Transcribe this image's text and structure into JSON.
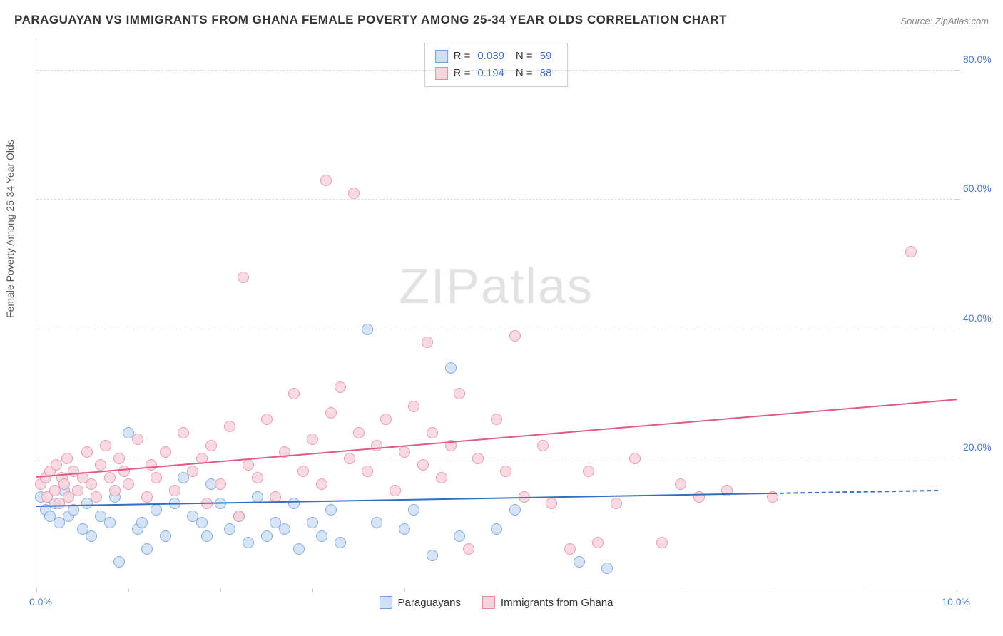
{
  "title": "PARAGUAYAN VS IMMIGRANTS FROM GHANA FEMALE POVERTY AMONG 25-34 YEAR OLDS CORRELATION CHART",
  "source": "Source: ZipAtlas.com",
  "watermark": {
    "part1": "ZIP",
    "part2": "atlas"
  },
  "ylabel": "Female Poverty Among 25-34 Year Olds",
  "chart": {
    "type": "scatter",
    "xlim": [
      0,
      10
    ],
    "ylim": [
      0,
      85
    ],
    "x_ticks": [
      0,
      1,
      2,
      3,
      4,
      5,
      6,
      7,
      8,
      9,
      10
    ],
    "y_ticks": [
      20,
      40,
      60,
      80
    ],
    "y_tick_labels": [
      "20.0%",
      "40.0%",
      "60.0%",
      "80.0%"
    ],
    "x_origin_label": "0.0%",
    "x_max_label": "10.0%",
    "grid_color": "#dddddd",
    "background_color": "#ffffff",
    "marker_radius": 8,
    "series": [
      {
        "name": "Paraguayans",
        "R": "0.039",
        "N": "59",
        "fill": "#cfe0f5",
        "stroke": "#6fa0df",
        "trend_color": "#2f6fc4",
        "trend": {
          "x1": 0,
          "y1": 12.5,
          "x2": 8.0,
          "y2": 14.5,
          "dash_to_x": 9.8
        },
        "points": [
          [
            0.05,
            14
          ],
          [
            0.1,
            12
          ],
          [
            0.15,
            11
          ],
          [
            0.2,
            13
          ],
          [
            0.25,
            10
          ],
          [
            0.3,
            15
          ],
          [
            0.35,
            11
          ],
          [
            0.4,
            12
          ],
          [
            0.5,
            9
          ],
          [
            0.55,
            13
          ],
          [
            0.6,
            8
          ],
          [
            0.7,
            11
          ],
          [
            0.8,
            10
          ],
          [
            0.85,
            14
          ],
          [
            0.9,
            4
          ],
          [
            1.0,
            24
          ],
          [
            1.1,
            9
          ],
          [
            1.15,
            10
          ],
          [
            1.2,
            6
          ],
          [
            1.3,
            12
          ],
          [
            1.4,
            8
          ],
          [
            1.5,
            13
          ],
          [
            1.6,
            17
          ],
          [
            1.7,
            11
          ],
          [
            1.8,
            10
          ],
          [
            1.85,
            8
          ],
          [
            1.9,
            16
          ],
          [
            2.0,
            13
          ],
          [
            2.1,
            9
          ],
          [
            2.2,
            11
          ],
          [
            2.3,
            7
          ],
          [
            2.4,
            14
          ],
          [
            2.5,
            8
          ],
          [
            2.6,
            10
          ],
          [
            2.7,
            9
          ],
          [
            2.8,
            13
          ],
          [
            2.85,
            6
          ],
          [
            3.0,
            10
          ],
          [
            3.1,
            8
          ],
          [
            3.2,
            12
          ],
          [
            3.3,
            7
          ],
          [
            3.6,
            40
          ],
          [
            3.7,
            10
          ],
          [
            4.0,
            9
          ],
          [
            4.1,
            12
          ],
          [
            4.3,
            5
          ],
          [
            4.5,
            34
          ],
          [
            4.6,
            8
          ],
          [
            5.0,
            9
          ],
          [
            5.2,
            12
          ],
          [
            5.9,
            4
          ],
          [
            6.2,
            3
          ]
        ]
      },
      {
        "name": "Immigrants from Ghana",
        "R": "0.194",
        "N": "88",
        "fill": "#f8d4dc",
        "stroke": "#e88ba3",
        "trend_color": "#e05a85",
        "trend": {
          "x1": 0,
          "y1": 17,
          "x2": 10,
          "y2": 29
        },
        "points": [
          [
            0.05,
            16
          ],
          [
            0.1,
            17
          ],
          [
            0.12,
            14
          ],
          [
            0.15,
            18
          ],
          [
            0.2,
            15
          ],
          [
            0.22,
            19
          ],
          [
            0.25,
            13
          ],
          [
            0.28,
            17
          ],
          [
            0.3,
            16
          ],
          [
            0.33,
            20
          ],
          [
            0.35,
            14
          ],
          [
            0.4,
            18
          ],
          [
            0.45,
            15
          ],
          [
            0.5,
            17
          ],
          [
            0.55,
            21
          ],
          [
            0.6,
            16
          ],
          [
            0.65,
            14
          ],
          [
            0.7,
            19
          ],
          [
            0.75,
            22
          ],
          [
            0.8,
            17
          ],
          [
            0.85,
            15
          ],
          [
            0.9,
            20
          ],
          [
            0.95,
            18
          ],
          [
            1.0,
            16
          ],
          [
            1.1,
            23
          ],
          [
            1.2,
            14
          ],
          [
            1.25,
            19
          ],
          [
            1.3,
            17
          ],
          [
            1.4,
            21
          ],
          [
            1.5,
            15
          ],
          [
            1.6,
            24
          ],
          [
            1.7,
            18
          ],
          [
            1.8,
            20
          ],
          [
            1.85,
            13
          ],
          [
            1.9,
            22
          ],
          [
            2.0,
            16
          ],
          [
            2.1,
            25
          ],
          [
            2.2,
            11
          ],
          [
            2.25,
            48
          ],
          [
            2.3,
            19
          ],
          [
            2.4,
            17
          ],
          [
            2.5,
            26
          ],
          [
            2.6,
            14
          ],
          [
            2.7,
            21
          ],
          [
            2.8,
            30
          ],
          [
            2.9,
            18
          ],
          [
            3.0,
            23
          ],
          [
            3.1,
            16
          ],
          [
            3.15,
            63
          ],
          [
            3.2,
            27
          ],
          [
            3.3,
            31
          ],
          [
            3.4,
            20
          ],
          [
            3.45,
            61
          ],
          [
            3.5,
            24
          ],
          [
            3.6,
            18
          ],
          [
            3.7,
            22
          ],
          [
            3.8,
            26
          ],
          [
            3.9,
            15
          ],
          [
            4.0,
            21
          ],
          [
            4.1,
            28
          ],
          [
            4.2,
            19
          ],
          [
            4.25,
            38
          ],
          [
            4.3,
            24
          ],
          [
            4.4,
            17
          ],
          [
            4.5,
            22
          ],
          [
            4.6,
            30
          ],
          [
            4.7,
            6
          ],
          [
            4.8,
            20
          ],
          [
            5.0,
            26
          ],
          [
            5.1,
            18
          ],
          [
            5.2,
            39
          ],
          [
            5.3,
            14
          ],
          [
            5.5,
            22
          ],
          [
            5.6,
            13
          ],
          [
            5.8,
            6
          ],
          [
            6.0,
            18
          ],
          [
            6.1,
            7
          ],
          [
            6.3,
            13
          ],
          [
            6.5,
            20
          ],
          [
            6.8,
            7
          ],
          [
            7.0,
            16
          ],
          [
            7.2,
            14
          ],
          [
            7.5,
            15
          ],
          [
            8.0,
            14
          ],
          [
            9.5,
            52
          ]
        ]
      }
    ]
  },
  "legend": {
    "series1_label": "Paraguayans",
    "series2_label": "Immigrants from Ghana"
  },
  "stats_labels": {
    "R": "R =",
    "N": "N ="
  }
}
